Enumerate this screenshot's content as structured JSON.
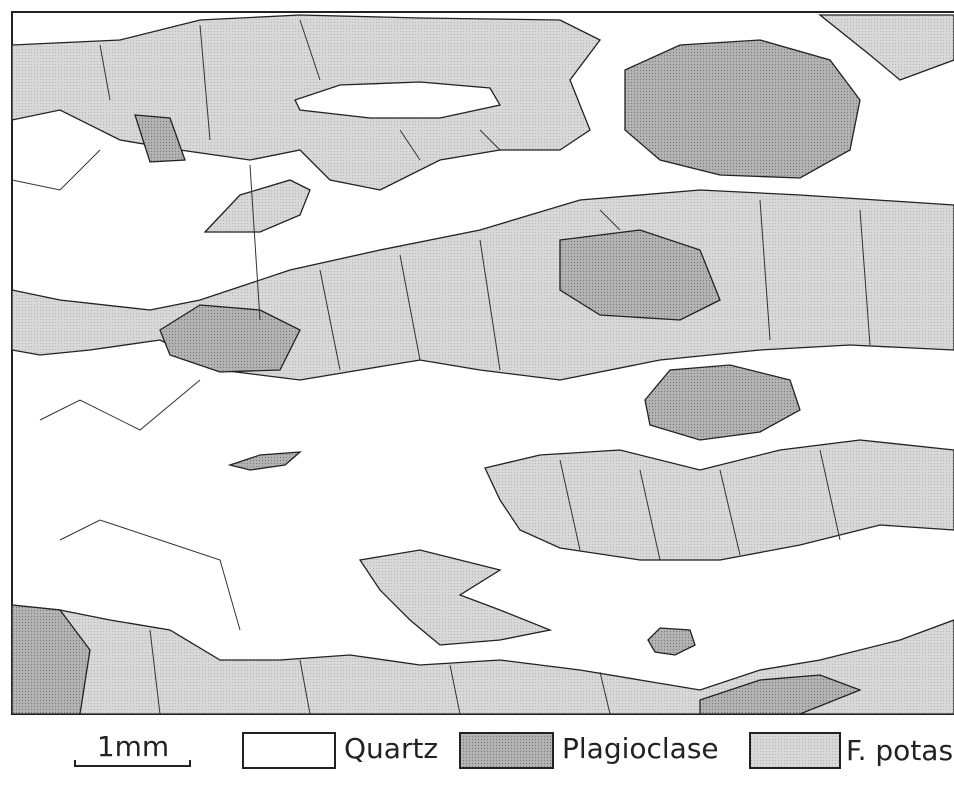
{
  "legend": {
    "scale": "1mm",
    "items": [
      {
        "label": "Quartz"
      },
      {
        "label": "Plagioclase"
      },
      {
        "label": "F. potas."
      }
    ]
  }
}
